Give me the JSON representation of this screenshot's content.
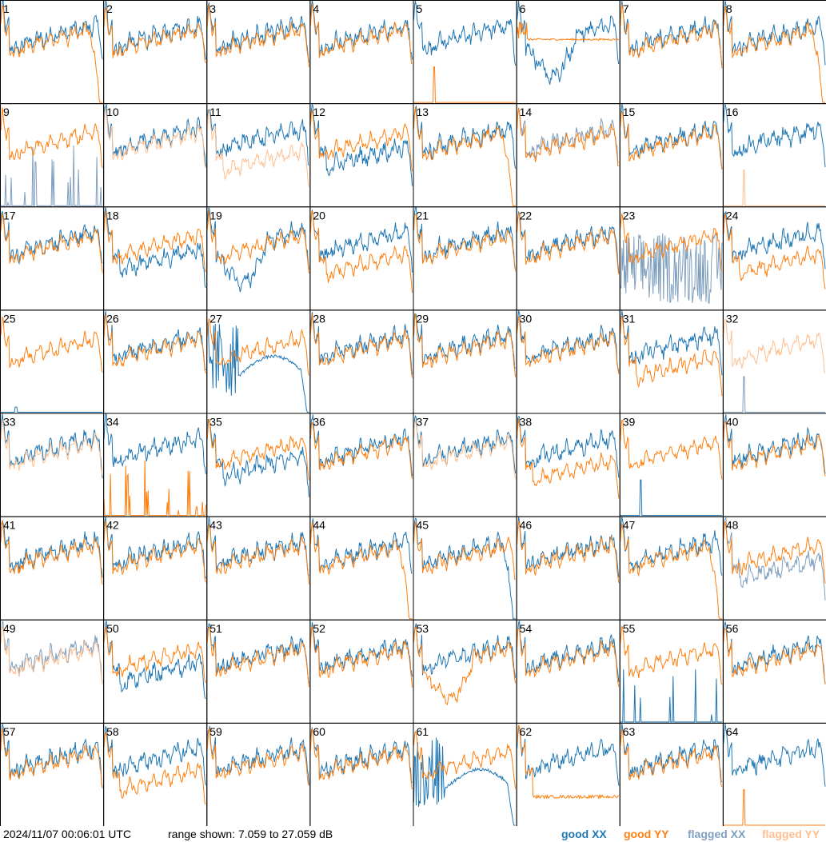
{
  "chart_data": {
    "type": "line",
    "grid": {
      "rows": 8,
      "cols": 8
    },
    "db_range": [
      7.059,
      27.059
    ],
    "colors": {
      "good_xx": "#1f77b4",
      "good_yy": "#ff7f0e",
      "flagged_xx": "#7f9fbf",
      "flagged_yy": "#ffbf8f"
    },
    "legend": [
      {
        "key": "good_xx",
        "label": "good XX"
      },
      {
        "key": "good_yy",
        "label": "good YY"
      },
      {
        "key": "flagged_xx",
        "label": "flagged XX"
      },
      {
        "key": "flagged_yy",
        "label": "flagged YY"
      }
    ],
    "panels": [
      {
        "n": "1",
        "xx": "good",
        "yy": "good",
        "xx_shape": "standard",
        "yy_shape": "dropoff_end"
      },
      {
        "n": "2",
        "xx": "good",
        "yy": "good",
        "xx_shape": "standard",
        "yy_shape": "standard"
      },
      {
        "n": "3",
        "xx": "good",
        "yy": "good",
        "xx_shape": "standard",
        "yy_shape": "standard"
      },
      {
        "n": "4",
        "xx": "good",
        "yy": "good",
        "xx_shape": "standard",
        "yy_shape": "standard"
      },
      {
        "n": "5",
        "xx": "good",
        "yy": "good",
        "xx_shape": "standard",
        "yy_shape": "floor_spike"
      },
      {
        "n": "6",
        "xx": "good",
        "yy": "good",
        "xx_shape": "deep_dip",
        "yy_shape": "flat_high"
      },
      {
        "n": "7",
        "xx": "good",
        "yy": "good",
        "xx_shape": "standard",
        "yy_shape": "standard"
      },
      {
        "n": "8",
        "xx": "good",
        "yy": "good",
        "xx_shape": "standard",
        "yy_shape": "dropoff_end"
      },
      {
        "n": "9",
        "xx": "flagged",
        "yy": "good",
        "xx_shape": "spiky_floor",
        "yy_shape": "standard"
      },
      {
        "n": "10",
        "xx": "good",
        "yy": "flagged",
        "xx_shape": "standard",
        "yy_shape": "standard"
      },
      {
        "n": "11",
        "xx": "good",
        "yy": "flagged",
        "xx_shape": "standard",
        "yy_shape": "lowered"
      },
      {
        "n": "12",
        "xx": "good",
        "yy": "good",
        "xx_shape": "lowered",
        "yy_shape": "standard"
      },
      {
        "n": "13",
        "xx": "good",
        "yy": "good",
        "xx_shape": "standard",
        "yy_shape": "dropoff_end"
      },
      {
        "n": "14",
        "xx": "flagged",
        "yy": "good",
        "xx_shape": "standard",
        "yy_shape": "standard"
      },
      {
        "n": "15",
        "xx": "good",
        "yy": "good",
        "xx_shape": "standard",
        "yy_shape": "standard"
      },
      {
        "n": "16",
        "xx": "good",
        "yy": "flagged",
        "xx_shape": "standard",
        "yy_shape": "floor_spike"
      },
      {
        "n": "17",
        "xx": "good",
        "yy": "good",
        "xx_shape": "standard",
        "yy_shape": "standard"
      },
      {
        "n": "18",
        "xx": "good",
        "yy": "good",
        "xx_shape": "lowered",
        "yy_shape": "standard"
      },
      {
        "n": "19",
        "xx": "good",
        "yy": "good",
        "xx_shape": "deep_dip",
        "yy_shape": "standard"
      },
      {
        "n": "20",
        "xx": "good",
        "yy": "good",
        "xx_shape": "standard",
        "yy_shape": "lowered"
      },
      {
        "n": "21",
        "xx": "good",
        "yy": "good",
        "xx_shape": "standard",
        "yy_shape": "standard"
      },
      {
        "n": "22",
        "xx": "good",
        "yy": "good",
        "xx_shape": "standard",
        "yy_shape": "standard"
      },
      {
        "n": "23",
        "xx": "flagged",
        "yy": "good",
        "xx_shape": "noise",
        "yy_shape": "standard"
      },
      {
        "n": "24",
        "xx": "good",
        "yy": "good",
        "xx_shape": "standard",
        "yy_shape": "lowered"
      },
      {
        "n": "25",
        "xx": "good",
        "yy": "good",
        "xx_shape": "floor",
        "yy_shape": "standard"
      },
      {
        "n": "26",
        "xx": "good",
        "yy": "good",
        "xx_shape": "standard",
        "yy_shape": "standard"
      },
      {
        "n": "27",
        "xx": "good",
        "yy": "good",
        "xx_shape": "deep_noise",
        "yy_shape": "standard"
      },
      {
        "n": "28",
        "xx": "good",
        "yy": "good",
        "xx_shape": "standard",
        "yy_shape": "standard"
      },
      {
        "n": "29",
        "xx": "good",
        "yy": "good",
        "xx_shape": "standard",
        "yy_shape": "standard"
      },
      {
        "n": "30",
        "xx": "good",
        "yy": "good",
        "xx_shape": "standard",
        "yy_shape": "standard"
      },
      {
        "n": "31",
        "xx": "good",
        "yy": "good",
        "xx_shape": "standard",
        "yy_shape": "lowered"
      },
      {
        "n": "32",
        "xx": "flagged",
        "yy": "flagged",
        "xx_shape": "floor_spike",
        "yy_shape": "standard"
      },
      {
        "n": "33",
        "xx": "good",
        "yy": "flagged",
        "xx_shape": "standard",
        "yy_shape": "standard"
      },
      {
        "n": "34",
        "xx": "good",
        "yy": "good",
        "xx_shape": "standard",
        "yy_shape": "spiky_floor"
      },
      {
        "n": "35",
        "xx": "good",
        "yy": "good",
        "xx_shape": "lowered",
        "yy_shape": "standard"
      },
      {
        "n": "36",
        "xx": "good",
        "yy": "good",
        "xx_shape": "standard",
        "yy_shape": "standard"
      },
      {
        "n": "37",
        "xx": "good",
        "yy": "flagged",
        "xx_shape": "standard",
        "yy_shape": "standard"
      },
      {
        "n": "38",
        "xx": "good",
        "yy": "good",
        "xx_shape": "standard",
        "yy_shape": "lowered"
      },
      {
        "n": "39",
        "xx": "good",
        "yy": "good",
        "xx_shape": "floor_spike",
        "yy_shape": "standard"
      },
      {
        "n": "40",
        "xx": "good",
        "yy": "good",
        "xx_shape": "standard",
        "yy_shape": "standard"
      },
      {
        "n": "41",
        "xx": "good",
        "yy": "good",
        "xx_shape": "standard",
        "yy_shape": "standard"
      },
      {
        "n": "42",
        "xx": "good",
        "yy": "good",
        "xx_shape": "standard",
        "yy_shape": "standard"
      },
      {
        "n": "43",
        "xx": "good",
        "yy": "good",
        "xx_shape": "standard",
        "yy_shape": "standard"
      },
      {
        "n": "44",
        "xx": "good",
        "yy": "good",
        "xx_shape": "standard",
        "yy_shape": "dropoff_end"
      },
      {
        "n": "45",
        "xx": "good",
        "yy": "good",
        "xx_shape": "dropoff_end",
        "yy_shape": "standard"
      },
      {
        "n": "46",
        "xx": "good",
        "yy": "good",
        "xx_shape": "standard",
        "yy_shape": "standard"
      },
      {
        "n": "47",
        "xx": "good",
        "yy": "good",
        "xx_shape": "standard",
        "yy_shape": "dropoff_end"
      },
      {
        "n": "48",
        "xx": "flagged",
        "yy": "good",
        "xx_shape": "lowered",
        "yy_shape": "standard"
      },
      {
        "n": "49",
        "xx": "flagged",
        "yy": "flagged",
        "xx_shape": "standard",
        "yy_shape": "standard"
      },
      {
        "n": "50",
        "xx": "good",
        "yy": "good",
        "xx_shape": "lowered",
        "yy_shape": "standard"
      },
      {
        "n": "51",
        "xx": "good",
        "yy": "good",
        "xx_shape": "standard",
        "yy_shape": "standard"
      },
      {
        "n": "52",
        "xx": "good",
        "yy": "good",
        "xx_shape": "standard",
        "yy_shape": "standard"
      },
      {
        "n": "53",
        "xx": "good",
        "yy": "good",
        "xx_shape": "standard",
        "yy_shape": "deep_dip"
      },
      {
        "n": "54",
        "xx": "good",
        "yy": "good",
        "xx_shape": "standard",
        "yy_shape": "standard"
      },
      {
        "n": "55",
        "xx": "good",
        "yy": "good",
        "xx_shape": "spiky_floor",
        "yy_shape": "standard"
      },
      {
        "n": "56",
        "xx": "good",
        "yy": "good",
        "xx_shape": "standard",
        "yy_shape": "standard"
      },
      {
        "n": "57",
        "xx": "good",
        "yy": "good",
        "xx_shape": "standard",
        "yy_shape": "standard"
      },
      {
        "n": "58",
        "xx": "good",
        "yy": "good",
        "xx_shape": "standard",
        "yy_shape": "lowered"
      },
      {
        "n": "59",
        "xx": "good",
        "yy": "good",
        "xx_shape": "standard",
        "yy_shape": "standard"
      },
      {
        "n": "60",
        "xx": "good",
        "yy": "good",
        "xx_shape": "standard",
        "yy_shape": "standard"
      },
      {
        "n": "61",
        "xx": "good",
        "yy": "good",
        "xx_shape": "deep_noise",
        "yy_shape": "standard"
      },
      {
        "n": "62",
        "xx": "good",
        "yy": "good",
        "xx_shape": "standard",
        "yy_shape": "low_flat"
      },
      {
        "n": "63",
        "xx": "good",
        "yy": "good",
        "xx_shape": "standard",
        "yy_shape": "standard"
      },
      {
        "n": "64",
        "xx": "good",
        "yy": "good",
        "xx_shape": "standard",
        "yy_shape": "floor_spike"
      }
    ]
  },
  "footer": {
    "timestamp": "2024/11/07 00:06:01 UTC",
    "range_text": "range shown: 7.059 to 27.059 dB"
  }
}
